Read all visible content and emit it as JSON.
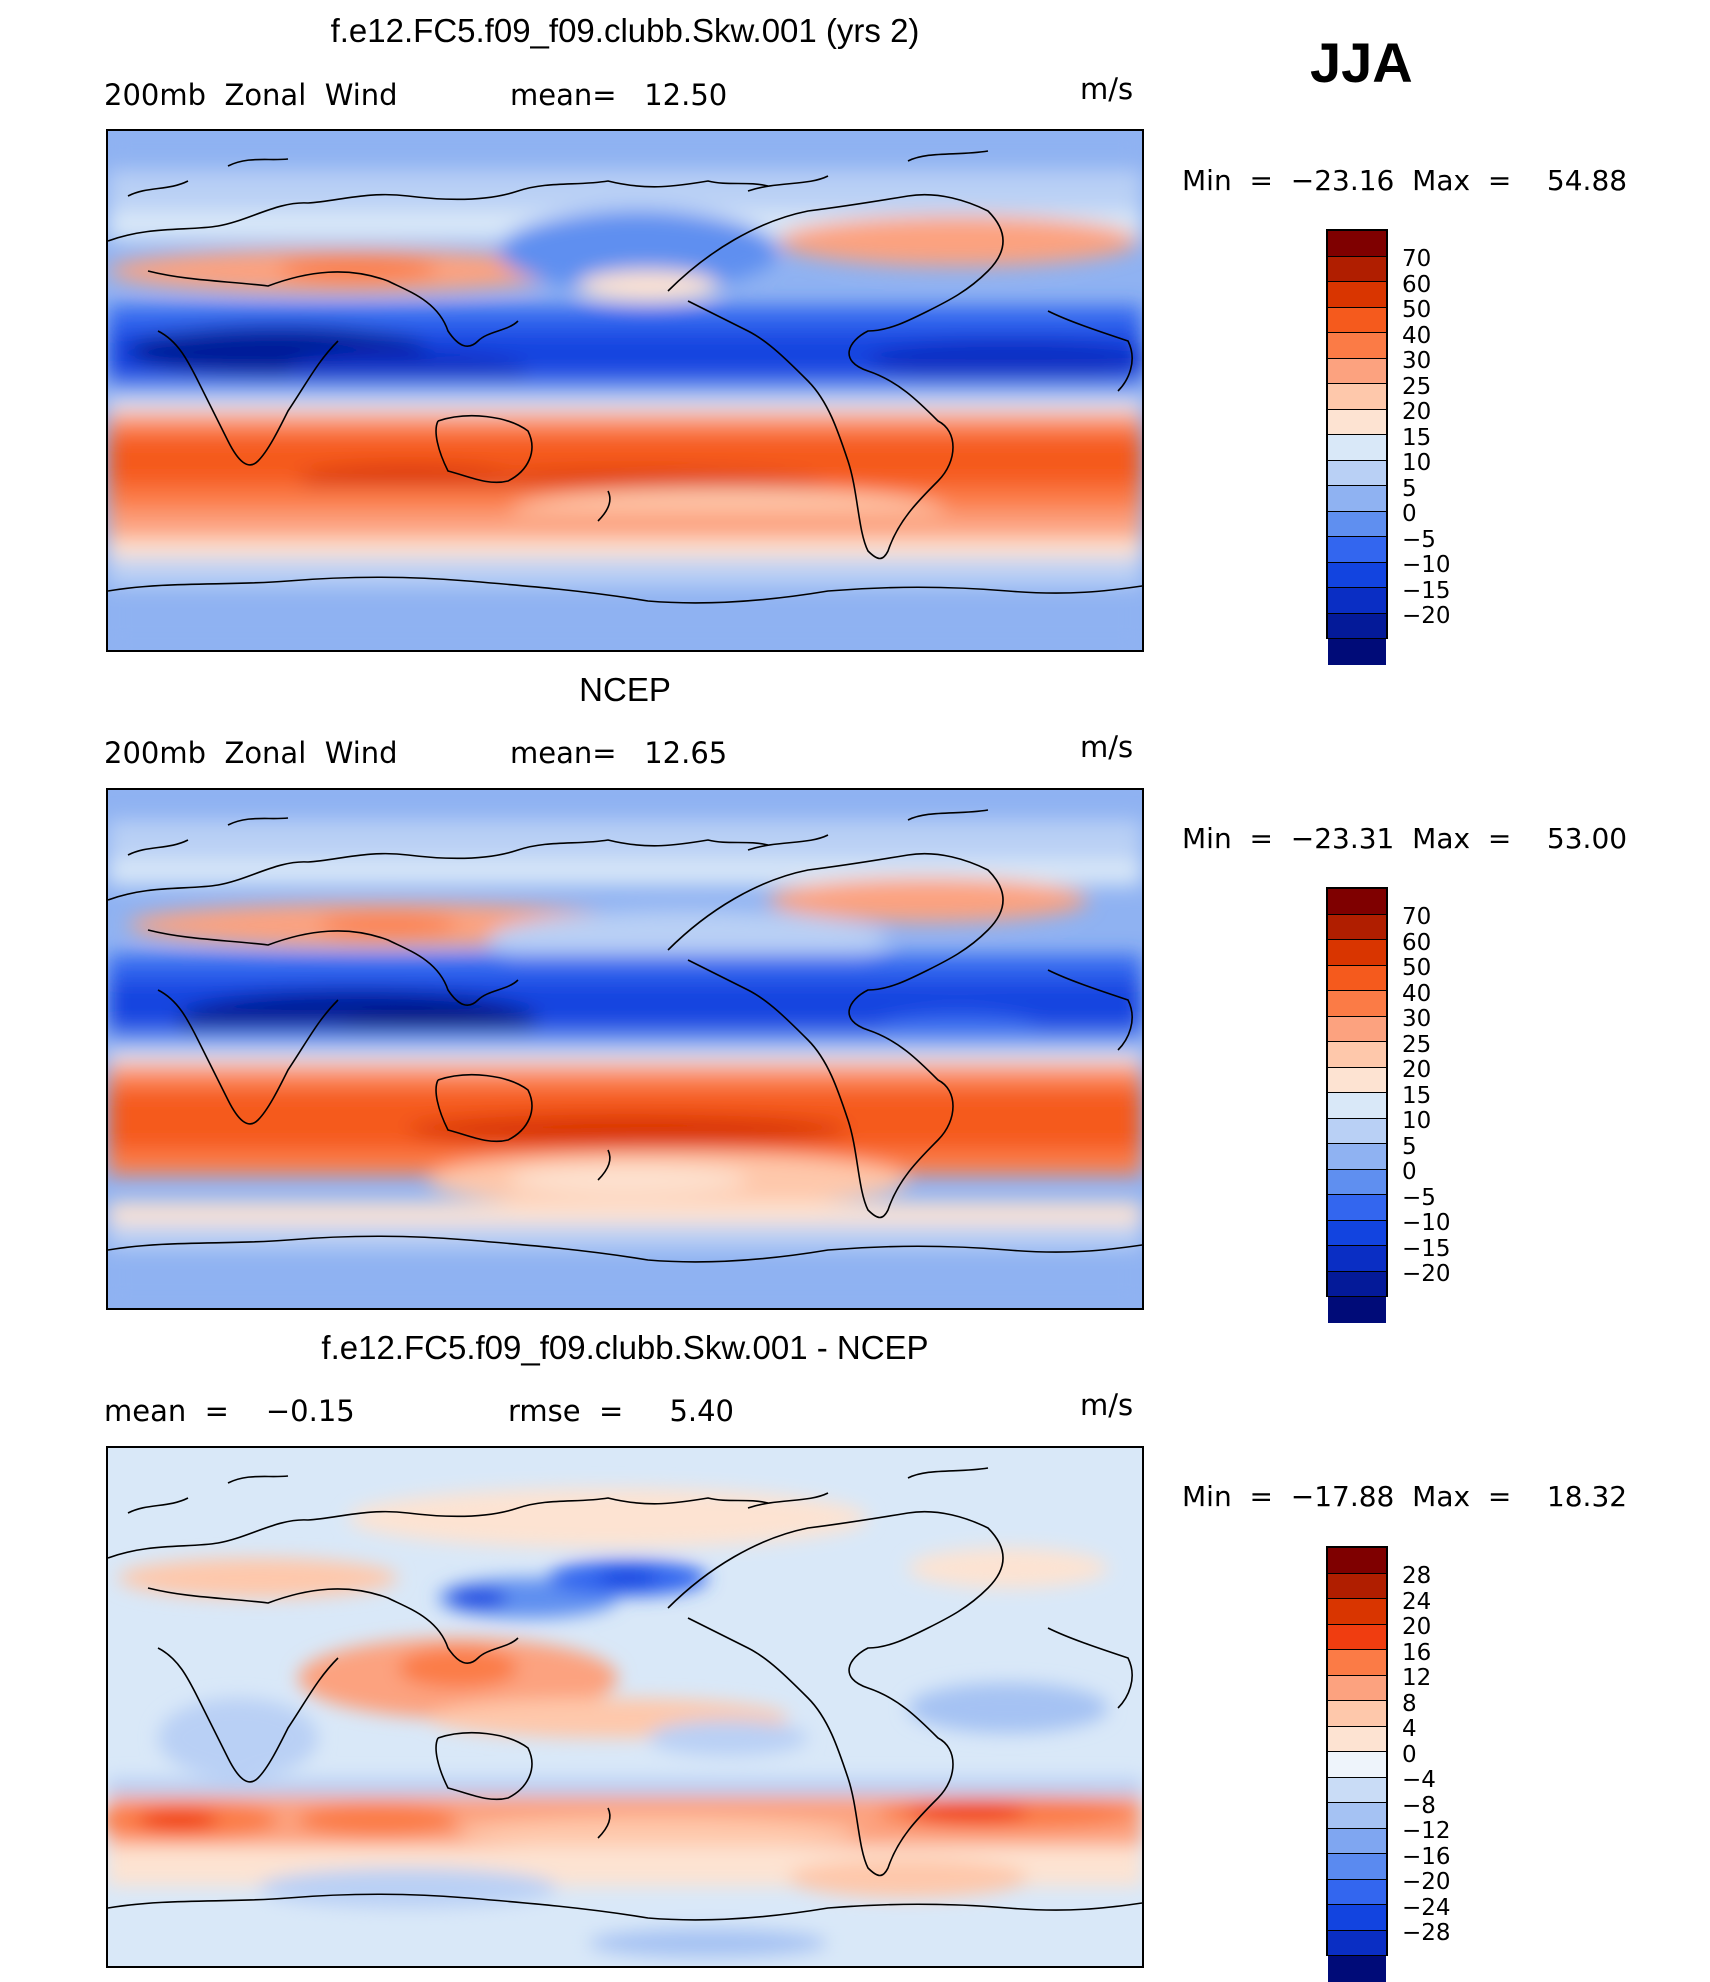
{
  "season_label": "JJA",
  "panels": [
    {
      "id": "model",
      "title": "f.e12.FC5.f09_f09.clubb.Skw.001 (yrs 2)",
      "left_label": "200mb  Zonal  Wind",
      "mid_label": "mean=   12.50",
      "units": "m/s",
      "min_max": "Min  =  −23.16  Max  =    54.88",
      "colorbar": {
        "colors": [
          "#7f0000",
          "#b01e00",
          "#d93500",
          "#f55a1d",
          "#fb7b46",
          "#fca27f",
          "#fec8ab",
          "#fde3d2",
          "#d9e8f8",
          "#b9d0f5",
          "#8fb2f2",
          "#5f8ff0",
          "#3366ef",
          "#1244e0",
          "#0a2ec4",
          "#041a99",
          "#000b78"
        ],
        "labels": [
          "70",
          "60",
          "50",
          "40",
          "30",
          "25",
          "20",
          "15",
          "10",
          "5",
          "0",
          "−5",
          "−10",
          "−15",
          "−20"
        ]
      }
    },
    {
      "id": "obs",
      "title": "NCEP",
      "left_label": "200mb  Zonal  Wind",
      "mid_label": "mean=   12.65",
      "units": "m/s",
      "min_max": "Min  =  −23.31  Max  =    53.00",
      "colorbar": {
        "colors": [
          "#7f0000",
          "#b01e00",
          "#d93500",
          "#f55a1d",
          "#fb7b46",
          "#fca27f",
          "#fec8ab",
          "#fde3d2",
          "#d9e8f8",
          "#b9d0f5",
          "#8fb2f2",
          "#5f8ff0",
          "#3366ef",
          "#1244e0",
          "#0a2ec4",
          "#041a99",
          "#000b78"
        ],
        "labels": [
          "70",
          "60",
          "50",
          "40",
          "30",
          "25",
          "20",
          "15",
          "10",
          "5",
          "0",
          "−5",
          "−10",
          "−15",
          "−20"
        ]
      }
    },
    {
      "id": "diff",
      "title": "f.e12.FC5.f09_f09.clubb.Skw.001 - NCEP",
      "left_label": "mean  =    −0.15",
      "mid_label": "rmse  =     5.40",
      "units": "m/s",
      "min_max": "Min  =  −17.88  Max  =    18.32",
      "colorbar": {
        "colors": [
          "#7f0000",
          "#b01e00",
          "#d93500",
          "#f03d10",
          "#fb7b46",
          "#fca27f",
          "#fec8ab",
          "#fde3d2",
          "#eef4fb",
          "#c9dcf6",
          "#a5c2f3",
          "#7fa6f1",
          "#5a8af0",
          "#3366ef",
          "#1244e0",
          "#0a2ec4",
          "#000b78"
        ],
        "labels": [
          "28",
          "24",
          "20",
          "16",
          "12",
          "8",
          "4",
          "0",
          "−4",
          "−8",
          "−12",
          "−16",
          "−20",
          "−24",
          "−28"
        ]
      }
    }
  ]
}
